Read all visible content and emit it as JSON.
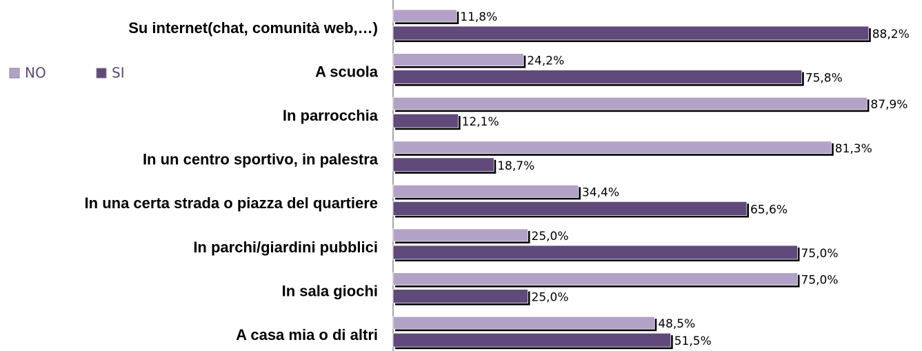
{
  "chart_data": {
    "type": "bar",
    "orientation": "horizontal",
    "categories": [
      "Su internet(chat, comunità web,…)",
      "A scuola",
      "In parrocchia",
      "In un centro sportivo, in palestra",
      "In una certa strada o piazza del quartiere",
      "In parchi/giardini pubblici",
      "In sala giochi",
      "A casa mia o di altri"
    ],
    "series": [
      {
        "name": "NO",
        "color": "#b3a2c7",
        "values": [
          11.8,
          24.2,
          87.9,
          81.3,
          34.4,
          25.0,
          75.0,
          48.5
        ],
        "value_labels": [
          "11,8%",
          "24,2%",
          "87,9%",
          "81,3%",
          "34,4%",
          "25,0%",
          "75,0%",
          "48,5%"
        ]
      },
      {
        "name": "SI",
        "color": "#604a7b",
        "values": [
          88.2,
          75.8,
          12.1,
          18.7,
          65.6,
          75.0,
          25.0,
          51.5
        ],
        "value_labels": [
          "88,2%",
          "75,8%",
          "12,1%",
          "18,7%",
          "65,6%",
          "75,0%",
          "25,0%",
          "51,5%"
        ]
      }
    ],
    "xlim": [
      0,
      100
    ],
    "legend": "left"
  }
}
